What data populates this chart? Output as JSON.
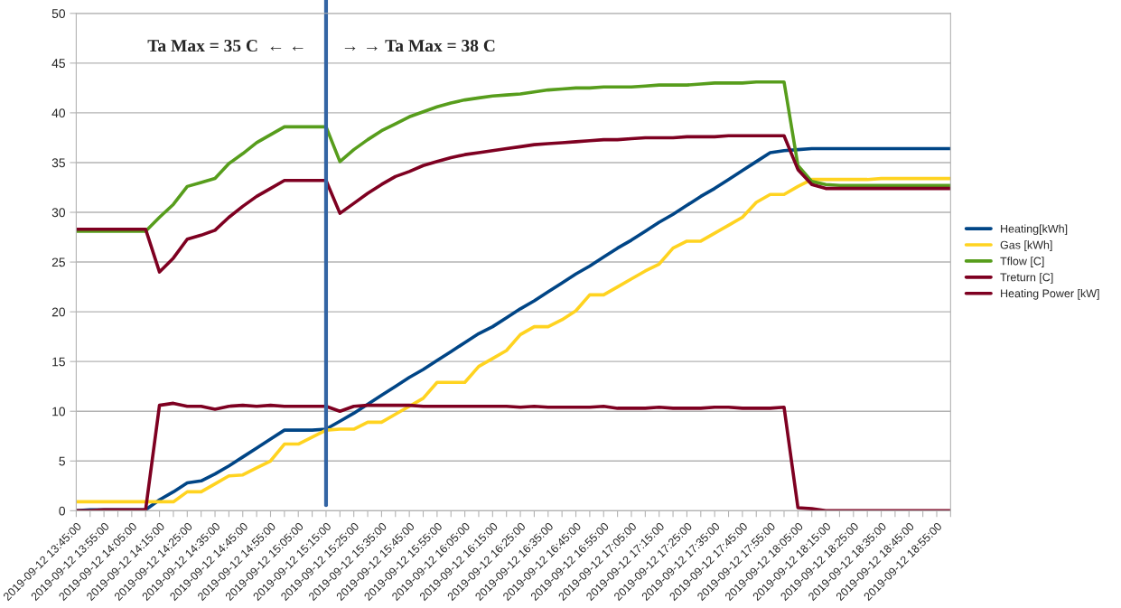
{
  "chart_data": {
    "type": "line",
    "categories": [
      "2019-09-12 13:45:00",
      null,
      "2019-09-12 13:55:00",
      null,
      "2019-09-12 14:05:00",
      null,
      "2019-09-12 14:15:00",
      null,
      "2019-09-12 14:25:00",
      null,
      "2019-09-12 14:35:00",
      null,
      "2019-09-12 14:45:00",
      null,
      "2019-09-12 14:55:00",
      null,
      "2019-09-12 15:05:00",
      null,
      "2019-09-12 15:15:00",
      null,
      "2019-09-12 15:25:00",
      null,
      "2019-09-12 15:35:00",
      null,
      "2019-09-12 15:45:00",
      null,
      "2019-09-12 15:55:00",
      null,
      "2019-09-12 16:05:00",
      null,
      "2019-09-12 16:15:00",
      null,
      "2019-09-12 16:25:00",
      null,
      "2019-09-12 16:35:00",
      null,
      "2019-09-12 16:45:00",
      null,
      "2019-09-12 16:55:00",
      null,
      "2019-09-12 17:05:00",
      null,
      "2019-09-12 17:15:00",
      null,
      "2019-09-12 17:25:00",
      null,
      "2019-09-12 17:35:00",
      null,
      "2019-09-12 17:45:00",
      null,
      "2019-09-12 17:55:00",
      null,
      "2019-09-12 18:05:00",
      null,
      "2019-09-12 18:15:00",
      null,
      "2019-09-12 18:25:00",
      null,
      "2019-09-12 18:35:00",
      null,
      "2019-09-12 18:45:00",
      null,
      "2019-09-12 18:55:00",
      null
    ],
    "series": [
      {
        "name": "Heating[kWh]",
        "color": "#004586",
        "values": [
          0,
          0.1,
          0.1,
          0.1,
          0.1,
          0.1,
          1.1,
          1.9,
          2.8,
          3.0,
          3.7,
          4.5,
          5.4,
          6.3,
          7.2,
          8.1,
          8.1,
          8.1,
          8.2,
          9.0,
          9.8,
          10.7,
          11.6,
          12.5,
          13.4,
          14.2,
          15.1,
          16.0,
          16.9,
          17.8,
          18.5,
          19.4,
          20.3,
          21.1,
          22.0,
          22.9,
          23.8,
          24.6,
          25.5,
          26.4,
          27.2,
          28.1,
          29.0,
          29.8,
          30.7,
          31.6,
          32.4,
          33.3,
          34.2,
          35.1,
          36.0,
          36.2,
          36.3,
          36.4,
          36.4,
          36.4,
          36.4,
          36.4,
          36.4,
          36.4,
          36.4,
          36.4,
          36.4,
          36.4
        ]
      },
      {
        "name": "Gas [kWh]",
        "color": "#ffd320",
        "values": [
          0.9,
          0.9,
          0.9,
          0.9,
          0.9,
          0.9,
          0.9,
          0.9,
          1.9,
          1.9,
          2.7,
          3.5,
          3.6,
          4.3,
          5.0,
          6.7,
          6.7,
          7.4,
          8.1,
          8.2,
          8.2,
          8.9,
          8.9,
          9.7,
          10.5,
          11.3,
          12.9,
          12.9,
          12.9,
          14.5,
          15.3,
          16.1,
          17.7,
          18.5,
          18.5,
          19.2,
          20.1,
          21.7,
          21.7,
          22.5,
          23.3,
          24.1,
          24.8,
          26.4,
          27.1,
          27.1,
          27.9,
          28.7,
          29.5,
          31.0,
          31.8,
          31.8,
          32.6,
          33.3,
          33.3,
          33.3,
          33.3,
          33.3,
          33.4,
          33.4,
          33.4,
          33.4,
          33.4,
          33.4
        ]
      },
      {
        "name": "Tflow [C]",
        "color": "#579d1c",
        "values": [
          28.1,
          28.1,
          28.1,
          28.1,
          28.1,
          28.1,
          29.5,
          30.8,
          32.6,
          33.0,
          33.4,
          34.9,
          35.9,
          37.0,
          37.8,
          38.6,
          38.6,
          38.6,
          38.6,
          35.1,
          36.3,
          37.3,
          38.2,
          38.9,
          39.6,
          40.1,
          40.6,
          41.0,
          41.3,
          41.5,
          41.7,
          41.8,
          41.9,
          42.1,
          42.3,
          42.4,
          42.5,
          42.5,
          42.6,
          42.6,
          42.6,
          42.7,
          42.8,
          42.8,
          42.8,
          42.9,
          43.0,
          43.0,
          43.0,
          43.1,
          43.1,
          43.1,
          34.7,
          33.1,
          32.8,
          32.7,
          32.7,
          32.7,
          32.7,
          32.7,
          32.7,
          32.7,
          32.7,
          32.7
        ]
      },
      {
        "name": "Treturn [C]",
        "color": "#7e0021",
        "values": [
          28.3,
          28.3,
          28.3,
          28.3,
          28.3,
          28.3,
          24.0,
          25.4,
          27.3,
          27.7,
          28.2,
          29.5,
          30.6,
          31.6,
          32.4,
          33.2,
          33.2,
          33.2,
          33.2,
          29.9,
          30.9,
          31.9,
          32.8,
          33.6,
          34.1,
          34.7,
          35.1,
          35.5,
          35.8,
          36.0,
          36.2,
          36.4,
          36.6,
          36.8,
          36.9,
          37.0,
          37.1,
          37.2,
          37.3,
          37.3,
          37.4,
          37.5,
          37.5,
          37.5,
          37.6,
          37.6,
          37.6,
          37.7,
          37.7,
          37.7,
          37.7,
          37.7,
          34.3,
          32.8,
          32.4,
          32.4,
          32.4,
          32.4,
          32.4,
          32.4,
          32.4,
          32.4,
          32.4,
          32.4
        ]
      },
      {
        "name": "Heating Power [kW]",
        "color": "#7e0021",
        "values": [
          0,
          0,
          0.1,
          0.1,
          0.1,
          0.1,
          10.6,
          10.8,
          10.5,
          10.5,
          10.2,
          10.5,
          10.6,
          10.5,
          10.6,
          10.5,
          10.5,
          10.5,
          10.5,
          10.0,
          10.5,
          10.6,
          10.6,
          10.6,
          10.6,
          10.5,
          10.5,
          10.5,
          10.5,
          10.5,
          10.5,
          10.5,
          10.4,
          10.5,
          10.4,
          10.4,
          10.4,
          10.4,
          10.5,
          10.3,
          10.3,
          10.3,
          10.4,
          10.3,
          10.3,
          10.3,
          10.4,
          10.4,
          10.3,
          10.3,
          10.3,
          10.4,
          0.3,
          0.2,
          0,
          0,
          0,
          0,
          0,
          0,
          0,
          0,
          0,
          0
        ]
      }
    ],
    "ylim": [
      0,
      50
    ],
    "yticks": [
      0,
      5,
      10,
      15,
      20,
      25,
      30,
      35,
      40,
      45,
      50
    ],
    "grid": "y",
    "legend": "right",
    "marker": "none",
    "line_style": "solid",
    "ref_lines": [
      {
        "axis": "x",
        "value": "2019-09-12 15:15:00",
        "label": null,
        "color": "#3465a4"
      }
    ],
    "annotations": [
      "Ta Max = 35 C  ← ←",
      "→ → Ta Max = 38 C"
    ]
  }
}
